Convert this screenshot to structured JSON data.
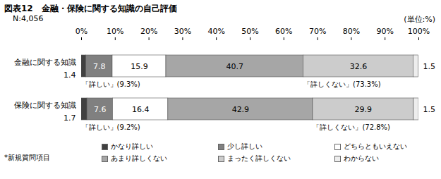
{
  "chart_data": {
    "type": "bar",
    "orientation": "horizontal",
    "stacked": true,
    "data_labels": true,
    "grid": false,
    "legend": "bottom",
    "title": "図表12　金融・保険に関する知識の自己評価",
    "subtitle": "N:4,056",
    "unit": "(単位:%)",
    "footnote": "*新規質問項目",
    "categories": [
      "金融に関する知識",
      "保険に関する知識"
    ],
    "series": [
      {
        "name": "かなり詳しい",
        "color": "#404040",
        "values": [
          1.4,
          1.7
        ]
      },
      {
        "name": "少し詳しい",
        "color": "#808080",
        "values": [
          7.8,
          7.6
        ]
      },
      {
        "name": "どちらともいえない",
        "color": "#ffffff",
        "values": [
          15.9,
          16.4
        ]
      },
      {
        "name": "あまり詳しくない",
        "color": "#a6a6a6",
        "values": [
          40.7,
          42.9
        ]
      },
      {
        "name": "まったく詳しくない",
        "color": "#cccccc",
        "values": [
          32.6,
          29.9
        ]
      },
      {
        "name": "わからない",
        "color": "#ededed",
        "values": [
          1.5,
          1.5
        ]
      }
    ],
    "xlim": [
      0,
      100
    ],
    "xticks": [
      {
        "value": 0,
        "label": "0%"
      },
      {
        "value": 10,
        "label": "10%"
      },
      {
        "value": 20,
        "label": "20%"
      },
      {
        "value": 30,
        "label": "30%"
      },
      {
        "value": 40,
        "label": "40%"
      },
      {
        "value": 50,
        "label": "50%"
      },
      {
        "value": 60,
        "label": "60%"
      },
      {
        "value": 70,
        "label": "70%"
      },
      {
        "value": 80,
        "label": "80%"
      },
      {
        "value": 90,
        "label": "90%"
      },
      {
        "value": 100,
        "label": "100%"
      }
    ],
    "annotations": [
      {
        "category": "金融に関する知識",
        "text": "「詳しい」(9.3%)"
      },
      {
        "category": "金融に関する知識",
        "text": "「詳しくない」(73.3%)"
      },
      {
        "category": "保険に関する知識",
        "text": "「詳しい」(9.2%)"
      },
      {
        "category": "保険に関する知識",
        "text": "「詳しくない」(72.8%)"
      }
    ]
  }
}
